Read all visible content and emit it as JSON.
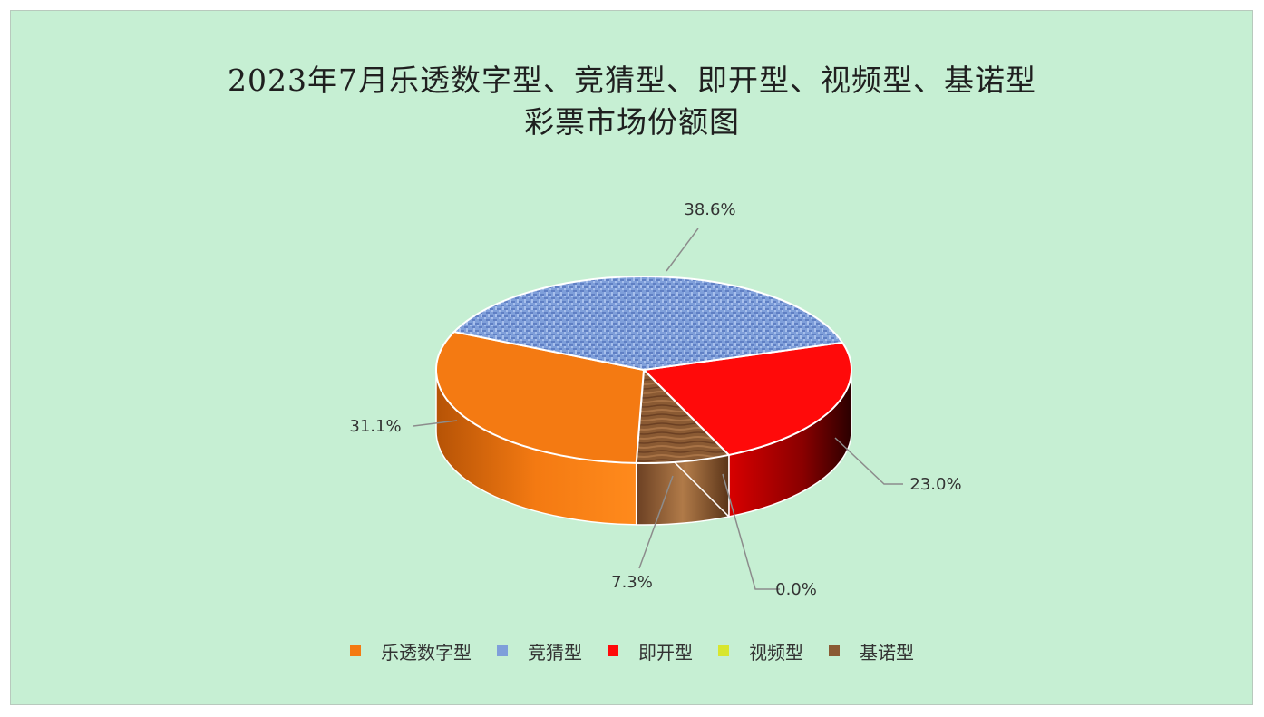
{
  "chart_data": {
    "type": "pie",
    "title_lines": [
      "2023年7月乐透数字型、竞猜型、即开型、视频型、基诺型",
      "彩票市场份额图"
    ],
    "categories": [
      "乐透数字型",
      "竞猜型",
      "即开型",
      "视频型",
      "基诺型"
    ],
    "values": [
      31.1,
      38.6,
      23.0,
      0.0,
      7.3
    ],
    "labels": [
      "31.1%",
      "38.6%",
      "23.0%",
      "0.0%",
      "7.3%"
    ],
    "colors": [
      "#f47a12",
      "#7f9fda",
      "#ff0a0a",
      "#d8e62e",
      "#8a5a33"
    ],
    "legend_position": "bottom",
    "style": "3d-pie"
  }
}
